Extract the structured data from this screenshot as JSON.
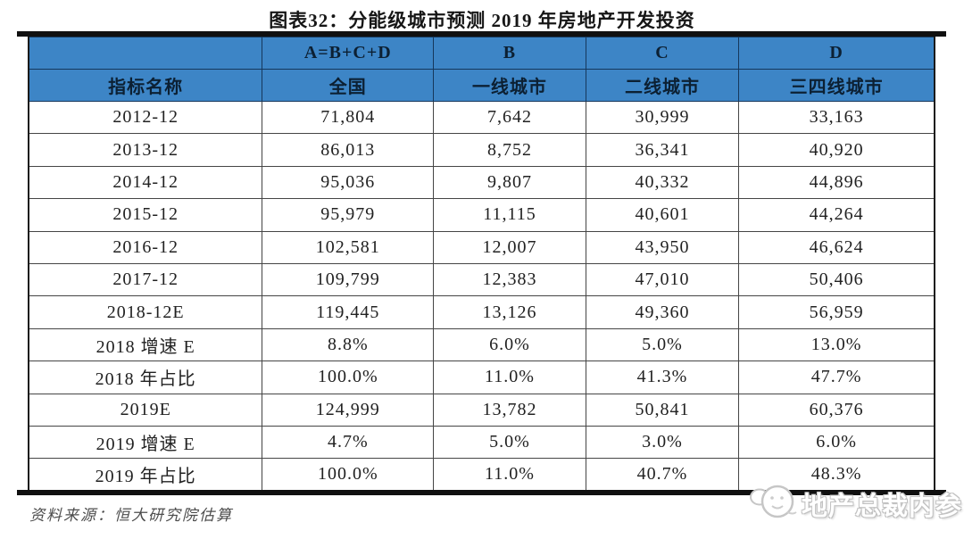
{
  "title": "图表32：分能级城市预测 2019 年房地产开发投资",
  "chart_data": {
    "type": "table",
    "title": "图表32：分能级城市预测 2019 年房地产开发投资",
    "header_row1": [
      "",
      "A=B+C+D",
      "B",
      "C",
      "D"
    ],
    "header_row2": [
      "指标名称",
      "全国",
      "一线城市",
      "二线城市",
      "三四线城市"
    ],
    "rows": [
      [
        "2012-12",
        "71,804",
        "7,642",
        "30,999",
        "33,163"
      ],
      [
        "2013-12",
        "86,013",
        "8,752",
        "36,341",
        "40,920"
      ],
      [
        "2014-12",
        "95,036",
        "9,807",
        "40,332",
        "44,896"
      ],
      [
        "2015-12",
        "95,979",
        "11,115",
        "40,601",
        "44,264"
      ],
      [
        "2016-12",
        "102,581",
        "12,007",
        "43,950",
        "46,624"
      ],
      [
        "2017-12",
        "109,799",
        "12,383",
        "47,010",
        "50,406"
      ],
      [
        "2018-12E",
        "119,445",
        "13,126",
        "49,360",
        "56,959"
      ],
      [
        "2018 增速 E",
        "8.8%",
        "6.0%",
        "5.0%",
        "13.0%"
      ],
      [
        "2018 年占比",
        "100.0%",
        "11.0%",
        "41.3%",
        "47.7%"
      ],
      [
        "2019E",
        "124,999",
        "13,782",
        "50,841",
        "60,376"
      ],
      [
        "2019 增速 E",
        "4.7%",
        "5.0%",
        "3.0%",
        "6.0%"
      ],
      [
        "2019 年占比",
        "100.0%",
        "11.0%",
        "40.7%",
        "48.3%"
      ]
    ]
  },
  "source": "资料来源：恒大研究院估算",
  "watermark": {
    "text": "地产总裁内参",
    "logo": "mascot-icon"
  },
  "colors": {
    "header_bg": "#3d85c6",
    "header_text": "#0c2033",
    "bar": "#101010",
    "border": "#454545",
    "body_text": "#212121"
  }
}
